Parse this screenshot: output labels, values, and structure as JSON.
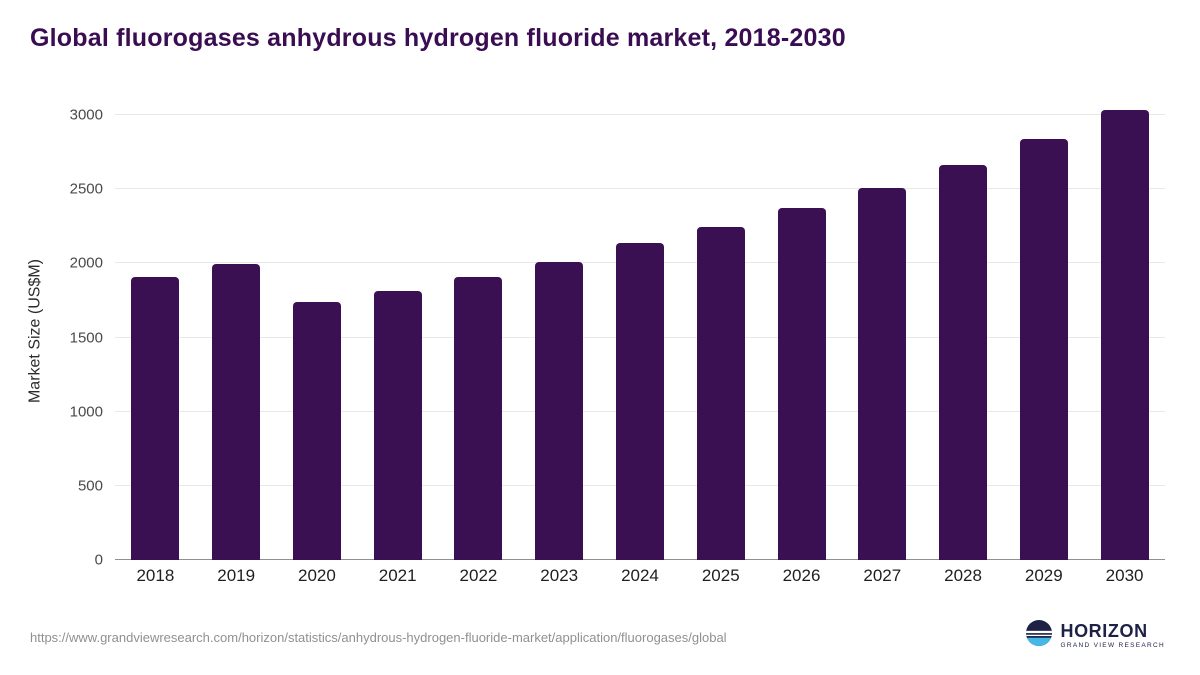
{
  "title": "Global fluorogases anhydrous hydrogen fluoride market, 2018-2030",
  "source_url": "https://www.grandviewresearch.com/horizon/statistics/anhydrous-hydrogen-fluoride-market/application/fluorogases/global",
  "logo": {
    "name": "HORIZON",
    "subtitle": "GRAND VIEW RESEARCH"
  },
  "colors": {
    "title": "#3a0d52",
    "bar": "#3b1053",
    "gridline": "#e8e8e8",
    "axis_line": "#8f8f8f",
    "logo_navy": "#1c2145",
    "logo_blue": "#45b8e8"
  },
  "chart_data": {
    "type": "bar",
    "title": "Global fluorogases anhydrous hydrogen fluoride market, 2018-2030",
    "categories": [
      "2018",
      "2019",
      "2020",
      "2021",
      "2022",
      "2023",
      "2024",
      "2025",
      "2026",
      "2027",
      "2028",
      "2029",
      "2030"
    ],
    "values": [
      1910,
      1995,
      1740,
      1815,
      1910,
      2010,
      2135,
      2245,
      2370,
      2510,
      2665,
      2835,
      3035
    ],
    "xlabel": "",
    "ylabel": "Market Size (US$M)",
    "ylim": [
      0,
      3000
    ],
    "yticks": [
      0,
      500,
      1000,
      1500,
      2000,
      2500,
      3000
    ],
    "bar_color": "#3b1053",
    "grid": true,
    "legend_position": "none"
  }
}
